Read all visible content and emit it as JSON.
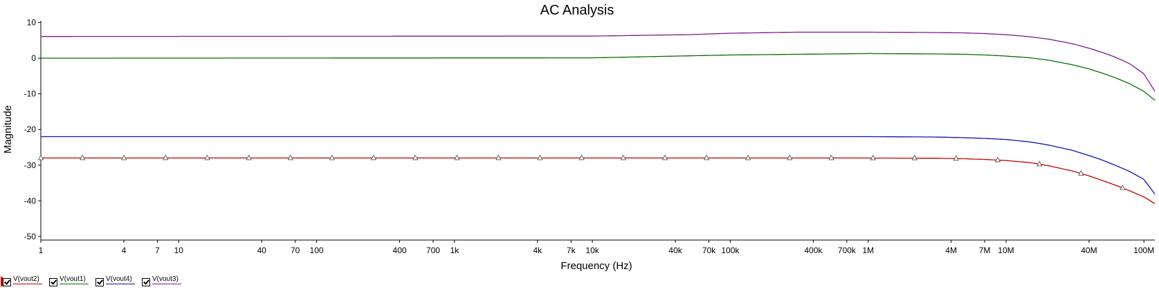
{
  "chart_data": {
    "type": "line",
    "title": "AC Analysis",
    "xlabel": "Frequency (Hz)",
    "ylabel": "Magnitude",
    "x_scale": "log",
    "xlim": [
      1,
      120000000
    ],
    "ylim": [
      -51,
      10.5
    ],
    "grid": false,
    "legend_position": "bottom-left",
    "x_ticks": [
      {
        "value": 1,
        "label": "1"
      },
      {
        "value": 4,
        "label": "4"
      },
      {
        "value": 7,
        "label": "7"
      },
      {
        "value": 10,
        "label": "10"
      },
      {
        "value": 40,
        "label": "40"
      },
      {
        "value": 70,
        "label": "70"
      },
      {
        "value": 100,
        "label": "100"
      },
      {
        "value": 400,
        "label": "400"
      },
      {
        "value": 700,
        "label": "700"
      },
      {
        "value": 1000,
        "label": "1k"
      },
      {
        "value": 4000,
        "label": "4k"
      },
      {
        "value": 7000,
        "label": "7k"
      },
      {
        "value": 10000,
        "label": "10k"
      },
      {
        "value": 40000,
        "label": "40k"
      },
      {
        "value": 70000,
        "label": "70k"
      },
      {
        "value": 100000,
        "label": "100k"
      },
      {
        "value": 400000,
        "label": "400k"
      },
      {
        "value": 700000,
        "label": "700k"
      },
      {
        "value": 1000000,
        "label": "1M"
      },
      {
        "value": 4000000,
        "label": "4M"
      },
      {
        "value": 7000000,
        "label": "7M"
      },
      {
        "value": 10000000,
        "label": "10M"
      },
      {
        "value": 40000000,
        "label": "40M"
      },
      {
        "value": 100000000,
        "label": "100M"
      }
    ],
    "y_ticks": [
      {
        "value": 10,
        "label": "10"
      },
      {
        "value": 0,
        "label": "0"
      },
      {
        "value": -10,
        "label": "-10"
      },
      {
        "value": -20,
        "label": "-20"
      },
      {
        "value": -30,
        "label": "-30"
      },
      {
        "value": -40,
        "label": "-40"
      },
      {
        "value": -50,
        "label": "-50"
      }
    ],
    "series": [
      {
        "name": "V(vout2)",
        "color": "#c00000",
        "marker": "triangle",
        "x": [
          1,
          1000,
          1000000,
          3000000,
          5000000,
          7000000,
          10000000,
          15000000,
          20000000,
          30000000,
          40000000,
          50000000,
          60000000,
          70000000,
          80000000,
          100000000,
          120000000
        ],
        "y": [
          -28,
          -28,
          -28,
          -28.05,
          -28.2,
          -28.4,
          -28.7,
          -29.3,
          -30.1,
          -31.6,
          -33.0,
          -34.3,
          -35.4,
          -36.4,
          -37.3,
          -38.9,
          -40.8
        ]
      },
      {
        "name": "V(vout1)",
        "color": "#007000",
        "x": [
          1,
          10000,
          100000,
          1000000,
          3000000,
          5000000,
          7000000,
          10000000,
          15000000,
          20000000,
          30000000,
          40000000,
          50000000,
          60000000,
          70000000,
          80000000,
          100000000,
          120000000
        ],
        "y": [
          0,
          0.1,
          0.9,
          1.3,
          1.2,
          1.1,
          0.9,
          0.6,
          0.1,
          -0.5,
          -1.8,
          -3.0,
          -4.2,
          -5.3,
          -6.3,
          -7.3,
          -9.3,
          -11.8
        ]
      },
      {
        "name": "V(vout4)",
        "color": "#1010b0",
        "x": [
          1,
          1000,
          1000000,
          3000000,
          5000000,
          7000000,
          10000000,
          15000000,
          20000000,
          30000000,
          40000000,
          50000000,
          60000000,
          70000000,
          80000000,
          100000000,
          120000000
        ],
        "y": [
          -22,
          -22,
          -22,
          -22.1,
          -22.3,
          -22.5,
          -22.8,
          -23.5,
          -24.3,
          -25.8,
          -27.3,
          -28.6,
          -29.8,
          -30.9,
          -31.9,
          -34.0,
          -38.1
        ]
      },
      {
        "name": "V(vout3)",
        "color": "#7a1a8a",
        "x": [
          1,
          10000,
          50000,
          100000,
          300000,
          1000000,
          3000000,
          5000000,
          7000000,
          10000000,
          15000000,
          20000000,
          30000000,
          40000000,
          50000000,
          60000000,
          70000000,
          80000000,
          100000000,
          120000000
        ],
        "y": [
          6.1,
          6.2,
          6.6,
          7.0,
          7.3,
          7.3,
          7.2,
          7.1,
          6.9,
          6.6,
          6.0,
          5.4,
          4.1,
          2.8,
          1.6,
          0.5,
          -0.6,
          -1.7,
          -4.4,
          -9.3
        ]
      }
    ]
  }
}
